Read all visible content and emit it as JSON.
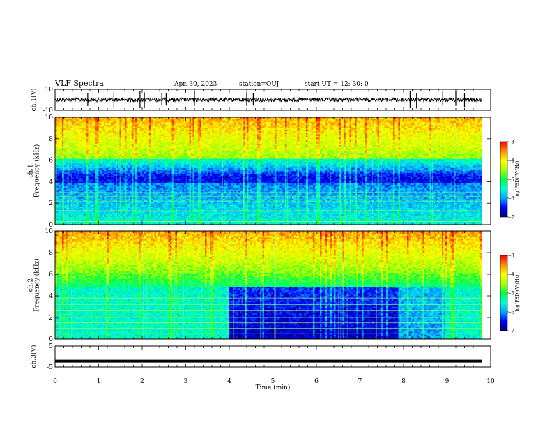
{
  "header": {
    "title": "VLF Spectra",
    "date": "Apr. 30, 2023",
    "station": "station=OUJ",
    "start": "start  UT =  12: 30: 0"
  },
  "colors": {
    "cmap_stops": [
      "#00007a",
      "#0000ff",
      "#00aaff",
      "#00ffd0",
      "#00ff44",
      "#aaff00",
      "#ffff00",
      "#ff8800",
      "#ff0000",
      "#ffffff"
    ],
    "waveform": "#000000"
  },
  "chart_data": [
    {
      "type": "line",
      "id": "ch1-waveform",
      "ylabel": "ch.1(V)",
      "ylim": [
        -10,
        10
      ],
      "yticks": [
        "10",
        "-10"
      ],
      "xlim": [
        0,
        10
      ],
      "baseline": 0,
      "spike_times": [
        0.75,
        1.35,
        1.95,
        2.05,
        2.45,
        2.55,
        3.2,
        4.4,
        4.55,
        8.15,
        8.3,
        8.9,
        9.2,
        9.4
      ]
    },
    {
      "type": "heatmap",
      "id": "ch1-spectrogram",
      "ylabel": "ch.1\nFrequency (kHz)",
      "ylim": [
        0,
        10
      ],
      "yticks": [
        "0",
        "2",
        "4",
        "6",
        "8",
        "10"
      ],
      "xlim": [
        0,
        10
      ],
      "colorbar": {
        "label": "log(PSD)(V²/Hz)",
        "range": [
          -7,
          -3
        ],
        "ticks": [
          "-3",
          "-4",
          "-5",
          "-6",
          "-7"
        ]
      },
      "bands_khz": [
        0.3,
        0.8,
        1.3,
        2.2,
        2.6,
        3.0,
        3.6
      ]
    },
    {
      "type": "heatmap",
      "id": "ch2-spectrogram",
      "ylabel": "ch.2\nFrequency (kHz)",
      "ylim": [
        0,
        10
      ],
      "yticks": [
        "0",
        "2",
        "4",
        "6",
        "8",
        "10"
      ],
      "xlim": [
        0,
        10
      ],
      "colorbar": {
        "label": "log(PSD)(V²/Hz)",
        "range": [
          -7,
          -3
        ],
        "ticks": [
          "-3",
          "-4",
          "-5",
          "-6",
          "-7"
        ]
      },
      "bands_khz": [
        0.5,
        1.0,
        1.5,
        2.0,
        2.6,
        3.2,
        3.8,
        6.3
      ],
      "segment_breaks_min": [
        4.0,
        7.9,
        9.0
      ]
    },
    {
      "type": "line",
      "id": "ch3-waveform",
      "ylabel": "ch.3(V)",
      "ylim": [
        -5,
        5
      ],
      "yticks": [
        "5",
        "-5"
      ],
      "xlim": [
        0,
        10
      ],
      "baseline": -2.2,
      "end_min": 9.8
    }
  ],
  "xaxis": {
    "label": "Time (min)",
    "ticks": [
      "0",
      "1",
      "2",
      "3",
      "4",
      "5",
      "6",
      "7",
      "8",
      "9",
      "10"
    ]
  }
}
